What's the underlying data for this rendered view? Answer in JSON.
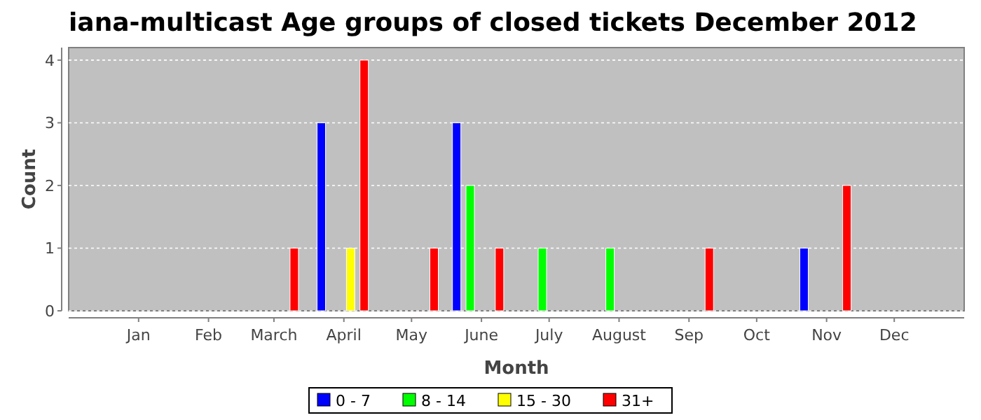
{
  "chart_data": {
    "type": "bar",
    "title": "iana-multicast Age groups of closed tickets December 2012",
    "xlabel": "Month",
    "ylabel": "Count",
    "xlim": [
      "2011-12-01",
      "2013-01-01"
    ],
    "xticks": [
      {
        "value": "2012-01-01",
        "label": "Jan"
      },
      {
        "value": "2012-02-01",
        "label": "Feb"
      },
      {
        "value": "2012-03-01",
        "label": "March"
      },
      {
        "value": "2012-04-01",
        "label": "April"
      },
      {
        "value": "2012-05-01",
        "label": "May"
      },
      {
        "value": "2012-06-01",
        "label": "June"
      },
      {
        "value": "2012-07-01",
        "label": "July"
      },
      {
        "value": "2012-08-01",
        "label": "August"
      },
      {
        "value": "2012-09-01",
        "label": "Sep"
      },
      {
        "value": "2012-10-01",
        "label": "Oct"
      },
      {
        "value": "2012-11-01",
        "label": "Nov"
      },
      {
        "value": "2012-12-01",
        "label": "Dec"
      }
    ],
    "ylim": [
      0,
      4.2
    ],
    "yticks": [
      0,
      1,
      2,
      3,
      4
    ],
    "grid": "y",
    "legend": "bottom",
    "series": [
      {
        "name": "0 - 7",
        "color": "#0000ff",
        "x": [
          "2012-03-22",
          "2012-05-21",
          "2012-10-22"
        ],
        "values": [
          3,
          3,
          1
        ]
      },
      {
        "name": "8 - 14",
        "color": "#00ff00",
        "x": [
          "2012-05-27",
          "2012-06-28",
          "2012-07-28"
        ],
        "values": [
          2,
          1,
          1
        ]
      },
      {
        "name": "15 - 30",
        "color": "#ffff00",
        "x": [
          "2012-04-04"
        ],
        "values": [
          1
        ]
      },
      {
        "name": "31+",
        "color": "#ff0000",
        "x": [
          "2012-03-10",
          "2012-04-10",
          "2012-05-11",
          "2012-06-09",
          "2012-09-10",
          "2012-11-10"
        ],
        "values": [
          1,
          4,
          1,
          1,
          1,
          2
        ]
      }
    ]
  }
}
